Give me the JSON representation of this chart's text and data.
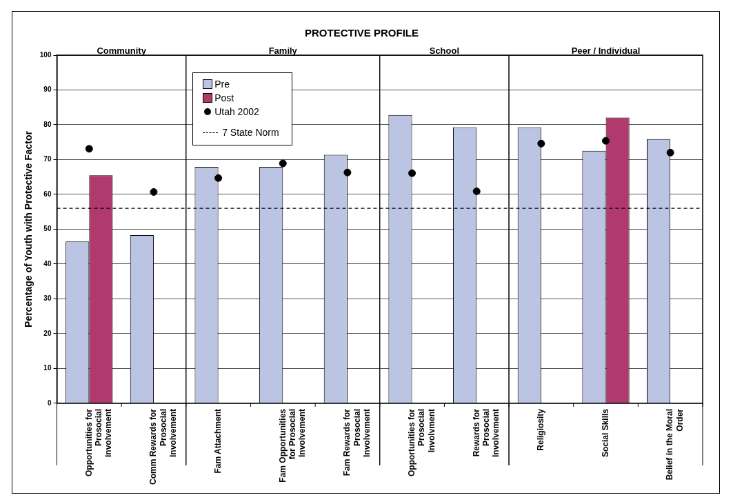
{
  "chart_data": {
    "type": "bar",
    "title": "PROTECTIVE PROFILE",
    "ylabel": "Percentage of Youth with Protective Factor",
    "categories": [
      "Opportunities for Prosocial involvement",
      "Comm Rewards for Prosocial Involvement",
      "Fam Attachment",
      "Fam Opportunities for Prosocial Involvement",
      "Fam Rewards for Prosocial Involvement",
      "Opportunities for Prosocial Involvment",
      "Rewards for Prosocial Involvement",
      "Religiosity",
      "Social Skills",
      "Belief in the Moral Order"
    ],
    "series": [
      {
        "name": "Pre",
        "color": "#bbc4e3",
        "values": [
          46.5,
          48.3,
          67.9,
          67.9,
          71.4,
          82.8,
          79.3,
          79.3,
          72.5,
          75.9
        ]
      },
      {
        "name": "Post",
        "color": "#b0396e",
        "values": [
          65.5,
          null,
          null,
          null,
          null,
          null,
          null,
          null,
          82.1,
          null
        ]
      },
      {
        "name": "Utah 2002",
        "type": "scatter",
        "marker": "circle",
        "color": "#000000",
        "values": [
          73.1,
          60.7,
          64.7,
          68.9,
          66.3,
          66.1,
          60.9,
          74.6,
          75.4,
          72.0
        ]
      }
    ],
    "ref_lines": [
      {
        "axis": "y",
        "value": 56,
        "label": "7 State Norm",
        "line_style": "dashed",
        "color": "#000000"
      }
    ],
    "annotations": [
      "Community",
      "Family",
      "School",
      "Peer / Individual"
    ],
    "ylim": [
      0,
      100
    ],
    "yticks": [
      0,
      10,
      20,
      30,
      40,
      50,
      60,
      70,
      80,
      90,
      100
    ],
    "grid": "y",
    "legend": "top left"
  }
}
